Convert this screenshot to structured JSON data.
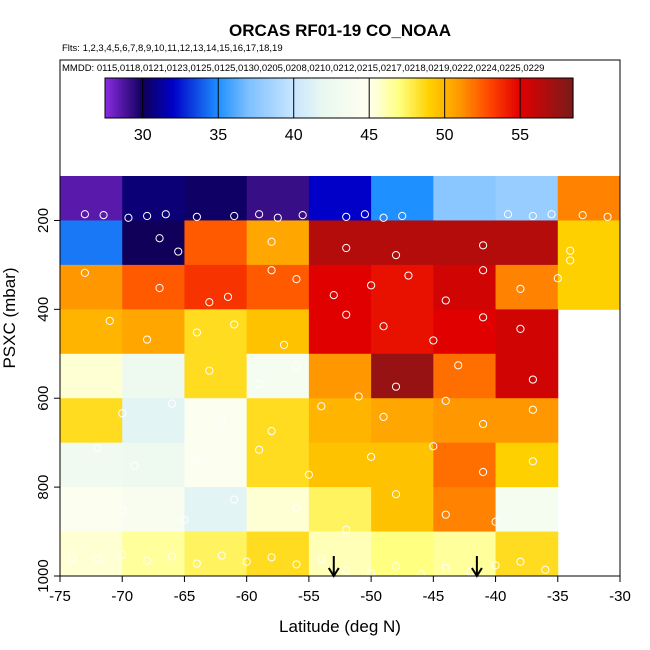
{
  "chart_data": {
    "type": "heatmap",
    "title": "ORCAS RF01-19 CO_NOAA",
    "flights_label": "Flts: 1,2,3,4,5,6,7,8,9,10,11,12,13,14,15,16,17,18,19",
    "dates_label": "MMDD: 0115,0118,0121,0123,0125,0125,0130,0205,0208,0210,0212,0215,0217,0218,0219,0222,0224,0225,0229",
    "xlabel": "Latitude (deg N)",
    "ylabel": "PSXC (mbar)",
    "xlim": [
      -75,
      -30
    ],
    "ylim": [
      1000,
      100
    ],
    "x_ticks": [
      -75,
      -70,
      -65,
      -60,
      -55,
      -50,
      -45,
      -40,
      -35,
      -30
    ],
    "y_ticks": [
      200,
      400,
      600,
      800,
      1000
    ],
    "colorbar": {
      "range": [
        27.5,
        58.5
      ],
      "ticks": [
        30,
        35,
        40,
        45,
        50,
        55
      ],
      "stops": [
        {
          "v": 27.5,
          "c": "#8a2be2"
        },
        {
          "v": 30,
          "c": "#10005a"
        },
        {
          "v": 32,
          "c": "#0000c8"
        },
        {
          "v": 35,
          "c": "#1e90ff"
        },
        {
          "v": 37,
          "c": "#7ec0ff"
        },
        {
          "v": 40,
          "c": "#c8e6ff"
        },
        {
          "v": 42,
          "c": "#eaf8f0"
        },
        {
          "v": 45,
          "c": "#fffff0"
        },
        {
          "v": 47,
          "c": "#ffff80"
        },
        {
          "v": 49,
          "c": "#ffd000"
        },
        {
          "v": 51,
          "c": "#ff9800"
        },
        {
          "v": 53,
          "c": "#ff4500"
        },
        {
          "v": 55,
          "c": "#e00000"
        },
        {
          "v": 58.5,
          "c": "#7a1a1a"
        }
      ]
    },
    "lat_bins": [
      -75,
      -70,
      -65,
      -60,
      -55,
      -50,
      -45,
      -40,
      -35,
      -30
    ],
    "pressure_bins": [
      100,
      200,
      300,
      400,
      500,
      600,
      700,
      800,
      900,
      1000
    ],
    "values": [
      [
        28.5,
        30.5,
        30.2,
        29.2,
        32.0,
        35.0,
        37.5,
        38.0,
        51.5
      ],
      [
        34.5,
        30.0,
        52.5,
        50.5,
        56.5,
        56.5,
        56.5,
        56.5,
        49.0
      ],
      [
        51.0,
        52.5,
        53.5,
        52.5,
        55.0,
        54.5,
        55.5,
        51.5,
        49.0
      ],
      [
        50.0,
        50.5,
        48.5,
        49.5,
        55.0,
        54.5,
        55.0,
        55.5,
        null
      ],
      [
        45.5,
        42.5,
        48.5,
        43.5,
        51.0,
        57.5,
        52.0,
        55.5,
        null
      ],
      [
        48.5,
        41.5,
        44.5,
        48.5,
        50.0,
        50.5,
        51.0,
        51.0,
        null
      ],
      [
        43.0,
        42.5,
        44.5,
        48.5,
        49.5,
        49.5,
        52.0,
        49.0,
        null
      ],
      [
        44.5,
        44.0,
        41.5,
        45.5,
        47.5,
        49.5,
        51.5,
        43.5,
        null
      ],
      [
        45.5,
        46.5,
        47.5,
        48.5,
        46.0,
        47.0,
        46.5,
        48.5,
        null
      ]
    ],
    "observation_points": [
      [
        -73,
        186
      ],
      [
        -71.5,
        188
      ],
      [
        -69.5,
        194
      ],
      [
        -68,
        190
      ],
      [
        -66.5,
        186
      ],
      [
        -64,
        192
      ],
      [
        -61,
        190
      ],
      [
        -59,
        186
      ],
      [
        -57.5,
        194
      ],
      [
        -55.5,
        188
      ],
      [
        -52,
        192
      ],
      [
        -50.5,
        186
      ],
      [
        -49,
        194
      ],
      [
        -47.5,
        190
      ],
      [
        -39,
        186
      ],
      [
        -37,
        190
      ],
      [
        -35.5,
        186
      ],
      [
        -33,
        188
      ],
      [
        -31,
        192
      ],
      [
        -67,
        240
      ],
      [
        -65.5,
        270
      ],
      [
        -58,
        248
      ],
      [
        -52,
        262
      ],
      [
        -48,
        278
      ],
      [
        -41,
        256
      ],
      [
        -34,
        268
      ],
      [
        -73,
        318
      ],
      [
        -67,
        352
      ],
      [
        -63,
        384
      ],
      [
        -61.5,
        372
      ],
      [
        -58,
        312
      ],
      [
        -56,
        332
      ],
      [
        -53,
        368
      ],
      [
        -50,
        346
      ],
      [
        -47,
        324
      ],
      [
        -44,
        380
      ],
      [
        -41,
        312
      ],
      [
        -38,
        354
      ],
      [
        -35,
        330
      ],
      [
        -34,
        290
      ],
      [
        -71,
        426
      ],
      [
        -68,
        468
      ],
      [
        -64,
        452
      ],
      [
        -61,
        434
      ],
      [
        -57,
        480
      ],
      [
        -52,
        412
      ],
      [
        -49,
        438
      ],
      [
        -45,
        470
      ],
      [
        -41,
        418
      ],
      [
        -38,
        444
      ],
      [
        -63,
        538
      ],
      [
        -59,
        568
      ],
      [
        -56,
        528
      ],
      [
        -51,
        596
      ],
      [
        -48,
        574
      ],
      [
        -43,
        526
      ],
      [
        -37,
        558
      ],
      [
        -70,
        634
      ],
      [
        -66,
        612
      ],
      [
        -62,
        652
      ],
      [
        -58,
        674
      ],
      [
        -54,
        618
      ],
      [
        -49,
        642
      ],
      [
        -44,
        606
      ],
      [
        -41,
        658
      ],
      [
        -37,
        626
      ],
      [
        -72,
        712
      ],
      [
        -69,
        752
      ],
      [
        -64,
        738
      ],
      [
        -59,
        716
      ],
      [
        -55,
        772
      ],
      [
        -50,
        732
      ],
      [
        -45,
        708
      ],
      [
        -41,
        766
      ],
      [
        -37,
        742
      ],
      [
        -70,
        852
      ],
      [
        -65,
        874
      ],
      [
        -61,
        828
      ],
      [
        -56,
        846
      ],
      [
        -52,
        896
      ],
      [
        -48,
        816
      ],
      [
        -44,
        862
      ],
      [
        -40,
        878
      ],
      [
        -74,
        958
      ],
      [
        -72,
        962
      ],
      [
        -70,
        952
      ],
      [
        -68,
        966
      ],
      [
        -66,
        956
      ],
      [
        -64,
        972
      ],
      [
        -62,
        954
      ],
      [
        -60,
        968
      ],
      [
        -58,
        958
      ],
      [
        -56,
        974
      ],
      [
        -54,
        962
      ],
      [
        -52,
        988
      ],
      [
        -50,
        994
      ],
      [
        -48,
        978
      ],
      [
        -46,
        996
      ],
      [
        -44,
        982
      ],
      [
        -42,
        990
      ],
      [
        -40,
        976
      ],
      [
        -38,
        968
      ],
      [
        -36,
        986
      ]
    ],
    "markers": [
      {
        "lat": -53.0,
        "label": "down-arrow"
      },
      {
        "lat": -41.5,
        "label": "down-arrow"
      }
    ]
  }
}
